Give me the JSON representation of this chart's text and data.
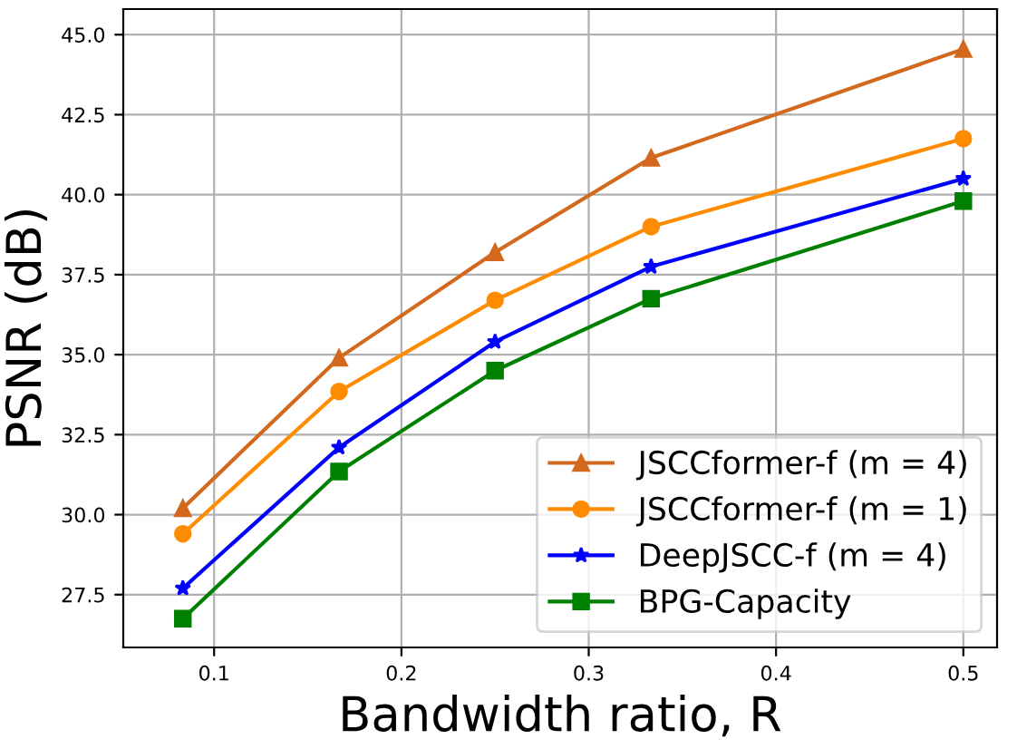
{
  "chart_data": {
    "type": "line",
    "xlabel": "Bandwidth ratio, R",
    "ylabel": "PSNR (dB)",
    "x": [
      0.0833,
      0.1667,
      0.25,
      0.3333,
      0.5
    ],
    "series": [
      {
        "name": "JSCCformer-f (m = 4)",
        "color": "#d2691e",
        "marker": "triangle",
        "values": [
          30.2,
          34.9,
          38.2,
          41.15,
          44.55
        ]
      },
      {
        "name": "JSCCformer-f (m = 1)",
        "color": "#ff8c00",
        "marker": "circle",
        "values": [
          29.4,
          33.85,
          36.7,
          39.0,
          41.75
        ]
      },
      {
        "name": "DeepJSCC-f (m = 4)",
        "color": "#0000ff",
        "marker": "star",
        "values": [
          27.7,
          32.1,
          35.4,
          37.75,
          40.5
        ]
      },
      {
        "name": "BPG-Capacity",
        "color": "#008000",
        "marker": "square",
        "values": [
          26.75,
          31.35,
          34.5,
          36.75,
          39.8
        ]
      }
    ],
    "xlim": [
      0.0515,
      0.518
    ],
    "xticks": [
      0.1,
      0.2,
      0.3,
      0.4,
      0.5
    ],
    "ylim": [
      25.85,
      45.8
    ],
    "yticks": [
      27.5,
      {
        "value": 30,
        "label": "30.0"
      },
      32.5,
      {
        "value": 35,
        "label": "35.0"
      },
      37.5,
      {
        "value": 40,
        "label": "40.0"
      },
      42.5,
      {
        "value": 45,
        "label": "45.0"
      }
    ],
    "grid": true,
    "legend": "bottom right",
    "line_style": "solid"
  }
}
